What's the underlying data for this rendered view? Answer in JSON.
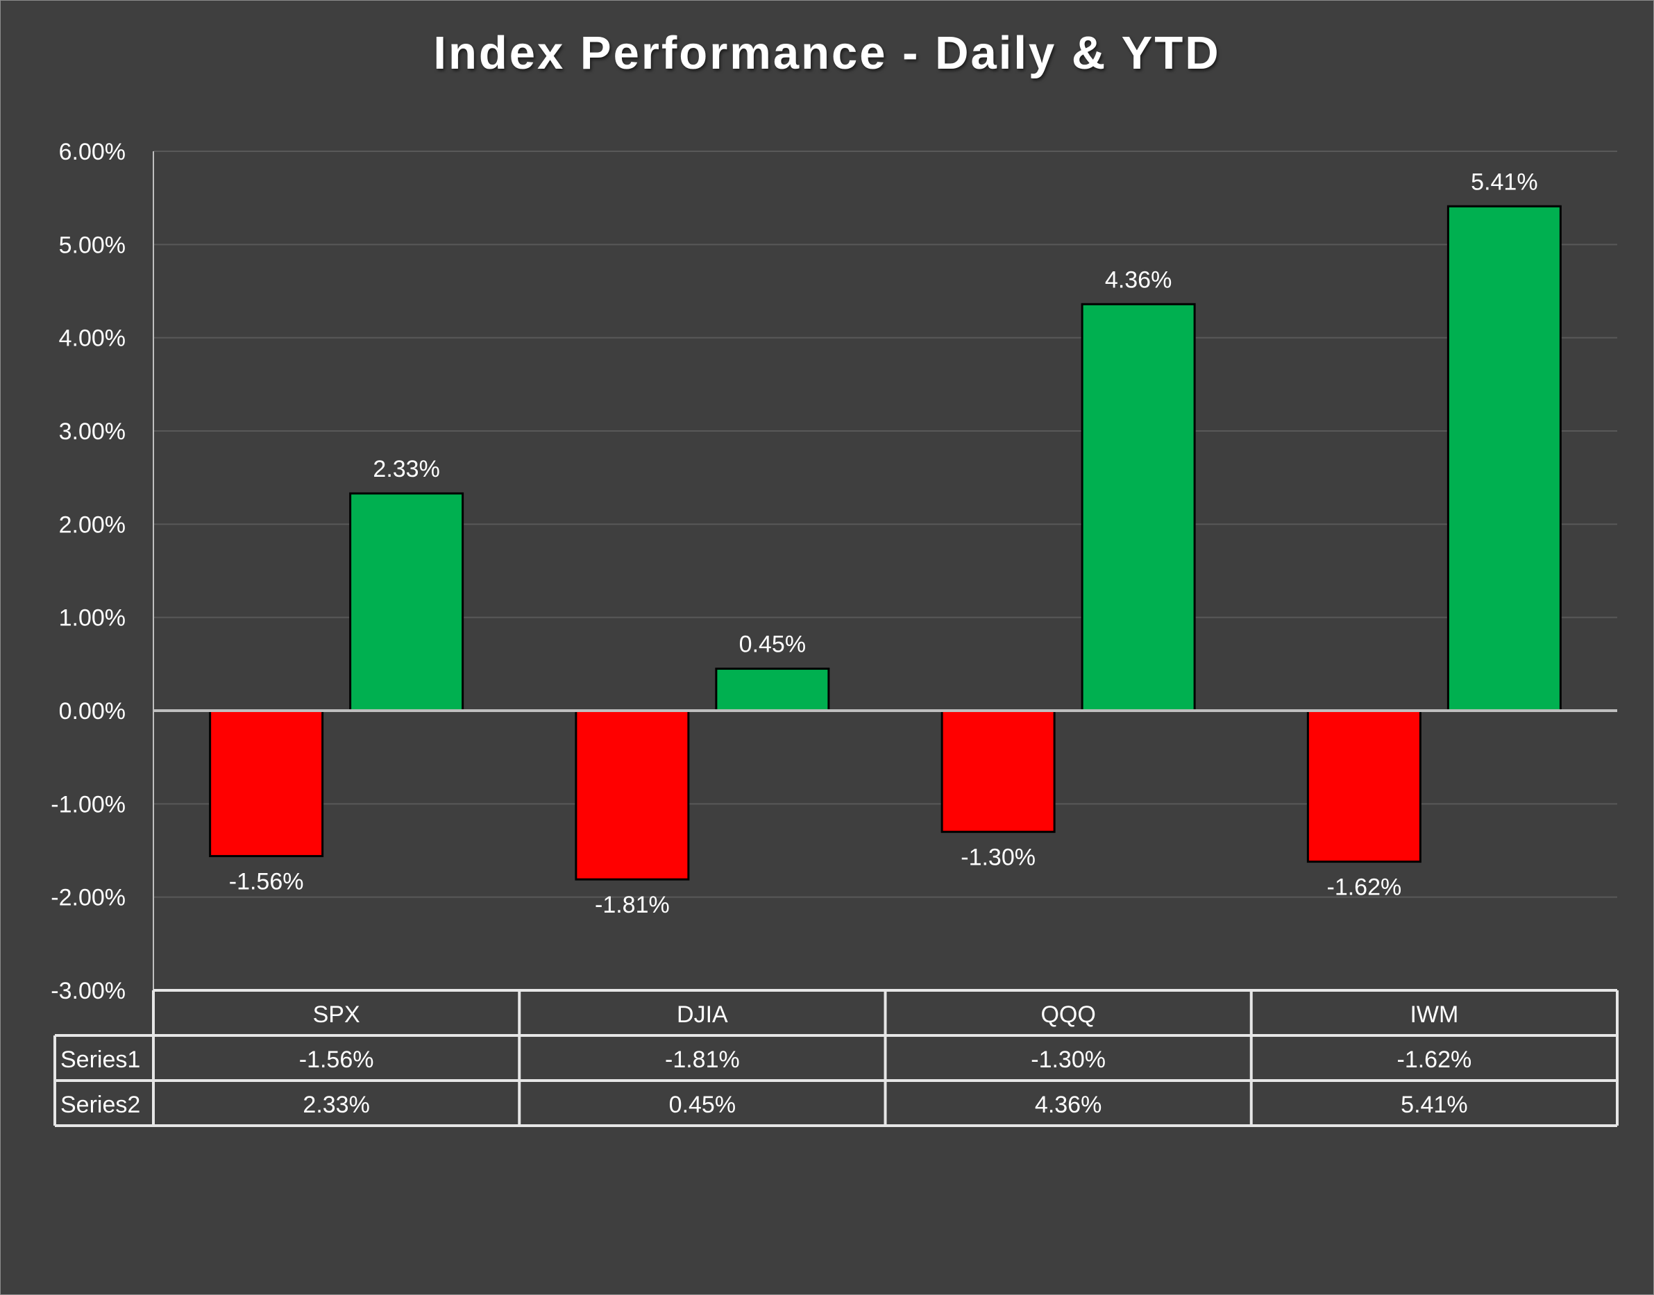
{
  "chart_data": {
    "type": "bar",
    "title": "Index Performance - Daily & YTD",
    "categories": [
      "SPX",
      "DJIA",
      "QQQ",
      "IWM"
    ],
    "series": [
      {
        "name": "Series1",
        "values": [
          -1.56,
          -1.81,
          -1.3,
          -1.62
        ],
        "labels": [
          "-1.56%",
          "-1.81%",
          "-1.30%",
          "-1.62%"
        ],
        "color": "#ff0000"
      },
      {
        "name": "Series2",
        "values": [
          2.33,
          0.45,
          4.36,
          5.41
        ],
        "labels": [
          "2.33%",
          "0.45%",
          "4.36%",
          "5.41%"
        ],
        "color": "#00b050"
      }
    ],
    "ylim": [
      -3,
      6
    ],
    "yticks": [
      "6.00%",
      "5.00%",
      "4.00%",
      "3.00%",
      "2.00%",
      "1.00%",
      "0.00%",
      "-1.00%",
      "-2.00%",
      "-3.00%"
    ],
    "grid": true,
    "legend": "data table below chart",
    "colors": {
      "background": "#3f3f3f",
      "gridline": "#595959",
      "text": "#ffffff",
      "axis": "#bfbfbf"
    }
  }
}
